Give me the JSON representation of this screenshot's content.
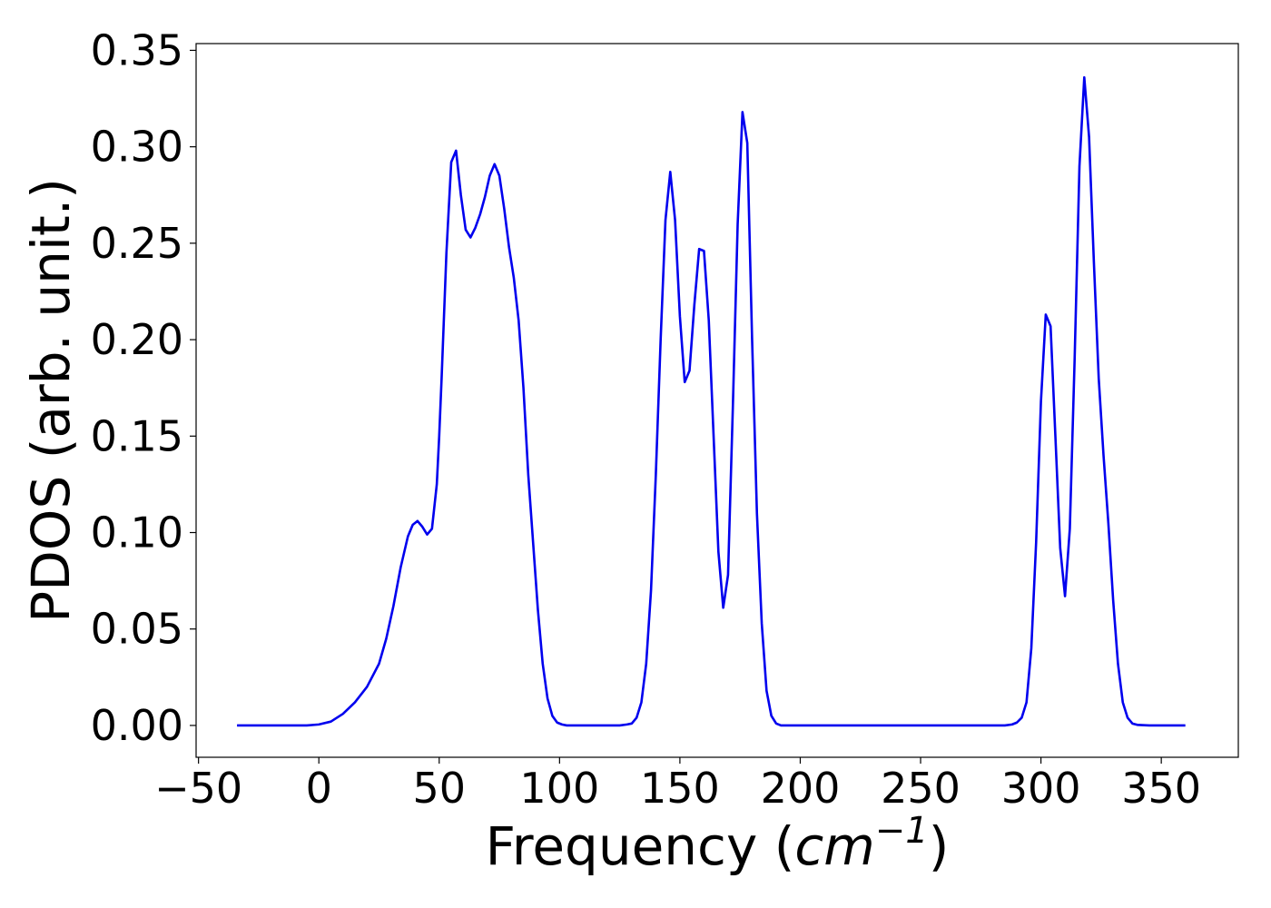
{
  "chart_data": {
    "type": "line",
    "title": "",
    "xlabel": "Frequency (cm⁻¹)",
    "xlabel_parts": {
      "prefix": "Frequency (",
      "unit_base": "cm",
      "unit_exp": "−1",
      "suffix": ")"
    },
    "ylabel": "PDOS (arb. unit.)",
    "xlim": [
      -51,
      382
    ],
    "ylim": [
      -0.0165,
      0.3535
    ],
    "grid": false,
    "xticks": [
      -50,
      0,
      50,
      100,
      150,
      200,
      250,
      300,
      350
    ],
    "xtick_labels": [
      "−50",
      "0",
      "50",
      "100",
      "150",
      "200",
      "250",
      "300",
      "350"
    ],
    "yticks": [
      0.0,
      0.05,
      0.1,
      0.15,
      0.2,
      0.25,
      0.3,
      0.35
    ],
    "ytick_labels": [
      "0.00",
      "0.05",
      "0.10",
      "0.15",
      "0.20",
      "0.25",
      "0.30",
      "0.35"
    ],
    "series": [
      {
        "color": "#0000ee",
        "x": [
          -34,
          -20,
          -5,
          0,
          5,
          10,
          15,
          20,
          25,
          28,
          31,
          34,
          37,
          39,
          41,
          43,
          45,
          47,
          49,
          50,
          51,
          53,
          55,
          57,
          59,
          61,
          63,
          65,
          67,
          69,
          71,
          73,
          75,
          77,
          79,
          81,
          83,
          85,
          87,
          89,
          91,
          93,
          95,
          97,
          99,
          101,
          103,
          105,
          110,
          115,
          120,
          125,
          128,
          130,
          132,
          134,
          136,
          138,
          140,
          142,
          144,
          146,
          148,
          150,
          152,
          154,
          156,
          158,
          160,
          162,
          164,
          166,
          168,
          170,
          172,
          174,
          176,
          178,
          180,
          182,
          184,
          186,
          188,
          190,
          192,
          195,
          200,
          210,
          230,
          250,
          270,
          285,
          288,
          290,
          292,
          294,
          296,
          298,
          300,
          302,
          304,
          306,
          308,
          310,
          312,
          314,
          316,
          318,
          320,
          322,
          324,
          326,
          328,
          330,
          332,
          334,
          336,
          338,
          340,
          345,
          350,
          355,
          360
        ],
        "y": [
          0.0,
          0.0,
          0.0,
          0.0005,
          0.002,
          0.006,
          0.012,
          0.02,
          0.032,
          0.045,
          0.062,
          0.082,
          0.098,
          0.104,
          0.106,
          0.103,
          0.099,
          0.102,
          0.125,
          0.15,
          0.18,
          0.245,
          0.292,
          0.298,
          0.275,
          0.257,
          0.253,
          0.258,
          0.265,
          0.274,
          0.285,
          0.291,
          0.285,
          0.268,
          0.248,
          0.232,
          0.21,
          0.175,
          0.13,
          0.095,
          0.06,
          0.032,
          0.014,
          0.005,
          0.0015,
          0.0005,
          0.0,
          0.0,
          0.0,
          0.0,
          0.0,
          0.0,
          0.0005,
          0.001,
          0.004,
          0.012,
          0.032,
          0.07,
          0.13,
          0.2,
          0.262,
          0.287,
          0.262,
          0.212,
          0.178,
          0.184,
          0.218,
          0.247,
          0.246,
          0.21,
          0.15,
          0.09,
          0.061,
          0.078,
          0.165,
          0.26,
          0.318,
          0.302,
          0.2,
          0.11,
          0.053,
          0.018,
          0.005,
          0.001,
          0.0,
          0.0,
          0.0,
          0.0,
          0.0,
          0.0,
          0.0,
          0.0,
          0.0005,
          0.0015,
          0.004,
          0.012,
          0.04,
          0.095,
          0.168,
          0.213,
          0.207,
          0.15,
          0.092,
          0.067,
          0.102,
          0.19,
          0.29,
          0.336,
          0.305,
          0.24,
          0.18,
          0.14,
          0.105,
          0.065,
          0.032,
          0.012,
          0.004,
          0.001,
          0.0003,
          0.0,
          0.0,
          0.0,
          0.0
        ]
      }
    ]
  }
}
